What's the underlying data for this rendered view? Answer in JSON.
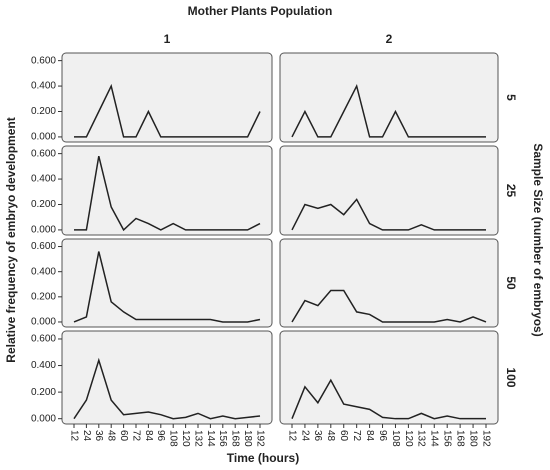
{
  "chart_data": {
    "type": "line",
    "title": "Mother Plants Population",
    "xlabel": "Time (hours)",
    "ylabel": "Relative frequency of embryo development",
    "row_title": "Sample Size (number of embryos)",
    "columns": [
      "1",
      "2"
    ],
    "categories": [
      "12",
      "24",
      "36",
      "48",
      "60",
      "72",
      "84",
      "96",
      "108",
      "120",
      "132",
      "144",
      "156",
      "168",
      "180",
      "192"
    ],
    "ylim": [
      -0.04,
      0.66
    ],
    "yticks": [
      {
        "value": 0,
        "label": "0.000"
      },
      {
        "value": 0.2,
        "label": "0.200"
      },
      {
        "value": 0.4,
        "label": "0.400"
      },
      {
        "value": 0.6,
        "label": "0.600"
      }
    ],
    "color": "#222222",
    "rows": [
      {
        "label": "5",
        "panels": [
          {
            "values": [
              0,
              0,
              0.2,
              0.4,
              0,
              0,
              0.2,
              0,
              0,
              0,
              0,
              0,
              0,
              0,
              0,
              0.2
            ]
          },
          {
            "values": [
              0,
              0.2,
              0,
              0,
              0.2,
              0.4,
              0,
              0,
              0.2,
              0,
              0,
              0,
              0,
              0,
              0,
              0
            ]
          }
        ]
      },
      {
        "label": "25",
        "panels": [
          {
            "values": [
              0,
              0,
              0.58,
              0.18,
              0,
              0.09,
              0.05,
              0,
              0.05,
              0,
              0,
              0,
              0,
              0,
              0,
              0.05
            ]
          },
          {
            "values": [
              0,
              0.2,
              0.17,
              0.2,
              0.12,
              0.24,
              0.05,
              0,
              0,
              0,
              0.04,
              0,
              0,
              0,
              0,
              0
            ]
          }
        ]
      },
      {
        "label": "50",
        "panels": [
          {
            "values": [
              0,
              0.04,
              0.56,
              0.16,
              0.08,
              0.02,
              0.02,
              0.02,
              0.02,
              0.02,
              0.02,
              0.02,
              0,
              0,
              0,
              0.02
            ]
          },
          {
            "values": [
              0,
              0.17,
              0.13,
              0.25,
              0.25,
              0.08,
              0.06,
              0,
              0,
              0,
              0,
              0,
              0.02,
              0,
              0.04,
              0
            ]
          }
        ]
      },
      {
        "label": "100",
        "panels": [
          {
            "values": [
              0,
              0.14,
              0.44,
              0.14,
              0.03,
              0.04,
              0.05,
              0.03,
              0,
              0.01,
              0.04,
              0,
              0.02,
              0,
              0.01,
              0.02
            ]
          },
          {
            "values": [
              0,
              0.24,
              0.12,
              0.29,
              0.11,
              0.09,
              0.07,
              0.01,
              0,
              0,
              0.04,
              0,
              0.02,
              0,
              0,
              0
            ]
          }
        ]
      }
    ]
  }
}
